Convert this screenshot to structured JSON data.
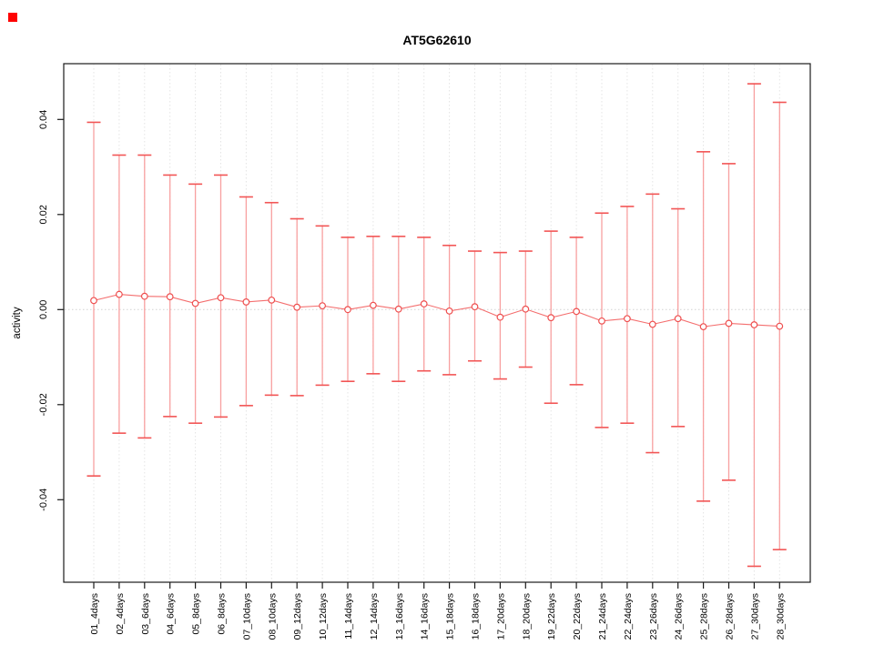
{
  "chart_data": {
    "type": "scatter",
    "title": "AT5G62610",
    "xlabel": "",
    "ylabel": "activity",
    "legend": "none",
    "grid": "vertical-dotted",
    "ylim": [
      -0.0574,
      0.0517
    ],
    "yticks": [
      -0.04,
      -0.02,
      0.0,
      0.02,
      0.04
    ],
    "ytick_labels": [
      "-0.04",
      "-0.02",
      "0.00",
      "0.02",
      "0.04"
    ],
    "zero_line": 0.0,
    "categories": [
      "01_4days",
      "02_4days",
      "03_6days",
      "04_6days",
      "05_8days",
      "06_8days",
      "07_10days",
      "08_10days",
      "09_12days",
      "10_12days",
      "11_14days",
      "12_14days",
      "13_16days",
      "14_16days",
      "15_18days",
      "16_18days",
      "17_20days",
      "18_20days",
      "19_22days",
      "20_22days",
      "21_24days",
      "22_24days",
      "23_26days",
      "24_26days",
      "25_28days",
      "26_28days",
      "27_30days",
      "28_30days"
    ],
    "series": [
      {
        "name": "activity",
        "values": [
          0.0019,
          0.0032,
          0.0028,
          0.0027,
          0.0013,
          0.0025,
          0.0016,
          0.002,
          0.0005,
          0.0008,
          0.0,
          0.0009,
          0.0001,
          0.0012,
          -0.0003,
          0.0006,
          -0.0016,
          0.0001,
          -0.0017,
          -0.0004,
          -0.0024,
          -0.0019,
          -0.0031,
          -0.0019,
          -0.0036,
          -0.0029,
          -0.0032,
          -0.0035
        ],
        "upper": [
          0.0394,
          0.0325,
          0.0325,
          0.0283,
          0.0264,
          0.0283,
          0.0237,
          0.0225,
          0.0191,
          0.0176,
          0.0152,
          0.0154,
          0.0154,
          0.0152,
          0.0135,
          0.0123,
          0.012,
          0.0123,
          0.0165,
          0.0152,
          0.0203,
          0.0217,
          0.0243,
          0.0212,
          0.0332,
          0.0307,
          0.0475,
          0.0436
        ],
        "lower": [
          -0.035,
          -0.026,
          -0.027,
          -0.0225,
          -0.0239,
          -0.0226,
          -0.0202,
          -0.018,
          -0.0181,
          -0.0159,
          -0.0151,
          -0.0135,
          -0.0151,
          -0.0129,
          -0.0137,
          -0.0108,
          -0.0146,
          -0.0121,
          -0.0197,
          -0.0158,
          -0.0248,
          -0.0239,
          -0.0301,
          -0.0246,
          -0.0403,
          -0.0359,
          -0.054,
          -0.0505
        ]
      }
    ],
    "colors": {
      "point_stroke": "#ee4f4f",
      "point_fill": "#ffffff",
      "connect_line": "#f46e6e",
      "errorbar_stem": "#f8a0a0",
      "errorbar_cap": "#f25555",
      "gridline": "#e4e4e4",
      "zero_line_color": "#d2d2d2",
      "axis": "#1a1a1a"
    }
  },
  "artifact": {
    "marker_color": "#fe0202"
  }
}
